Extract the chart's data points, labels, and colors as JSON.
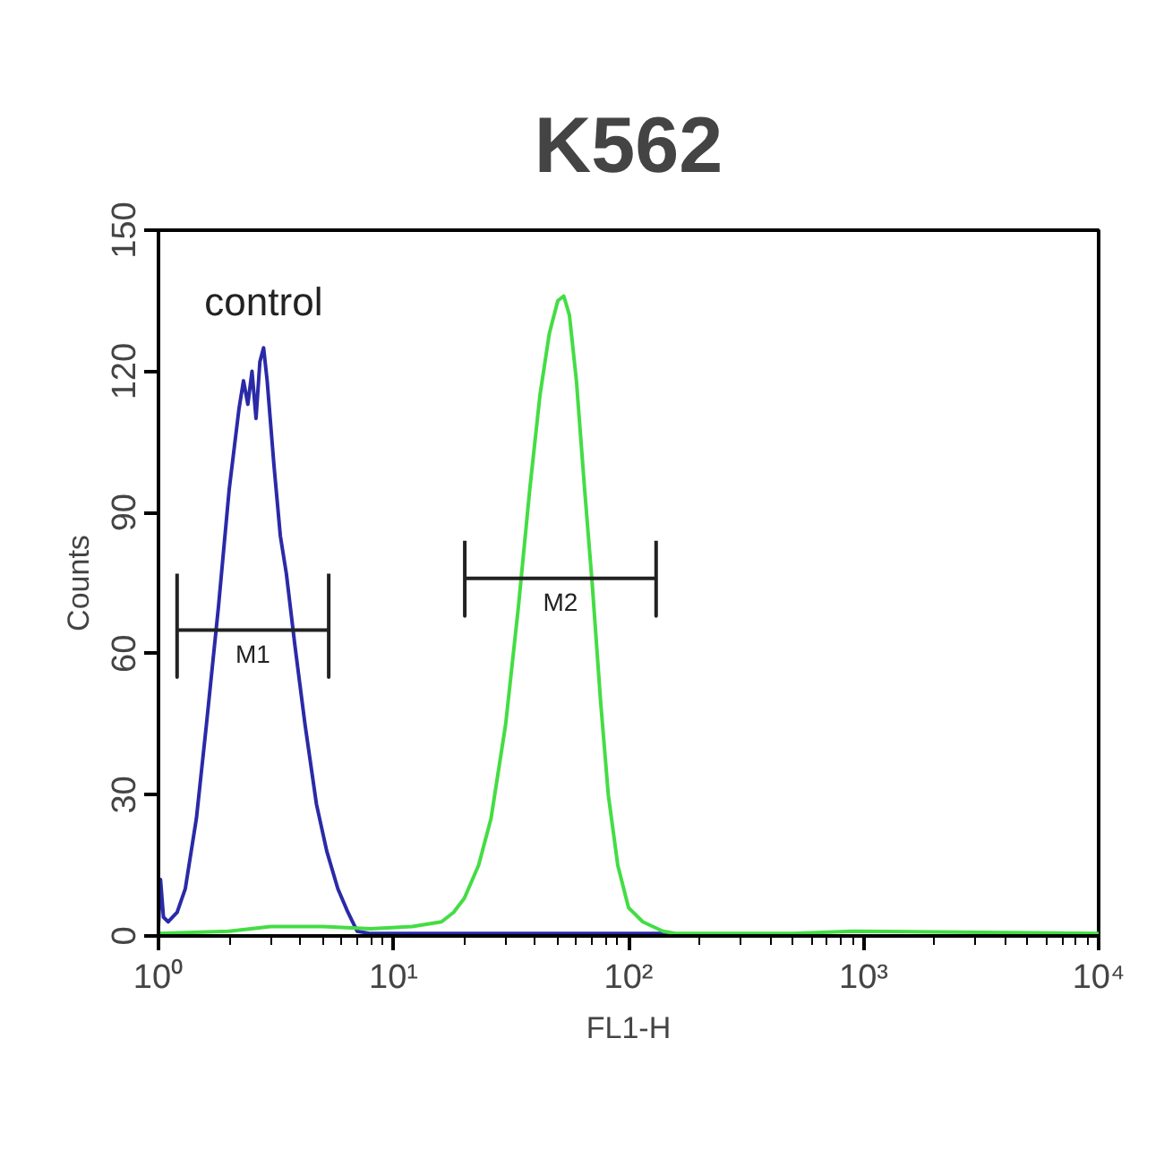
{
  "chart_data": {
    "type": "line",
    "title": "K562",
    "xlabel": "FL1-H",
    "ylabel": "Counts",
    "log": "x",
    "grid": false,
    "line_style": "solid",
    "marker": "none",
    "xlim": [
      1,
      10000
    ],
    "xticks": [
      {
        "value": 1,
        "label": "10⁰"
      },
      {
        "value": 10,
        "label": "10¹"
      },
      {
        "value": 100,
        "label": "10²"
      },
      {
        "value": 1000,
        "label": "10³"
      },
      {
        "value": 10000,
        "label": "10⁴"
      }
    ],
    "ylim": [
      0,
      150
    ],
    "yticks": [
      0,
      30,
      60,
      90,
      120,
      150
    ],
    "series": [
      {
        "name": "control",
        "color": "#2a2aa8",
        "x": [
          1.0,
          1.02,
          1.05,
          1.1,
          1.2,
          1.3,
          1.45,
          1.6,
          1.8,
          2.0,
          2.2,
          2.3,
          2.4,
          2.5,
          2.6,
          2.7,
          2.8,
          2.9,
          3.1,
          3.3,
          3.5,
          3.8,
          4.2,
          4.7,
          5.2,
          5.8,
          6.4,
          7.0,
          8,
          20,
          100,
          150
        ],
        "values": [
          2,
          12,
          4,
          3,
          5,
          10,
          25,
          45,
          70,
          95,
          112,
          118,
          113,
          120,
          110,
          122,
          125,
          118,
          100,
          85,
          77,
          62,
          45,
          28,
          18,
          10,
          5,
          1,
          0.5,
          0.5,
          0.5,
          0.5
        ]
      },
      {
        "color": "#44dd44",
        "x": [
          1,
          2,
          3,
          5,
          8,
          12,
          16,
          18,
          20,
          23,
          26,
          30,
          34,
          38,
          42,
          46,
          50,
          53,
          56,
          60,
          65,
          70,
          76,
          82,
          90,
          100,
          115,
          140,
          160,
          500,
          900,
          10000
        ],
        "values": [
          0.5,
          1,
          2,
          2,
          1.5,
          2,
          3,
          5,
          8,
          15,
          25,
          45,
          70,
          95,
          115,
          128,
          135,
          136,
          132,
          118,
          95,
          75,
          50,
          30,
          15,
          6,
          3,
          1,
          0.5,
          0.5,
          1,
          0.5
        ]
      },
      {
        "name": "M1",
        "color": "#222222",
        "x": [
          1.2,
          1.2,
          1.2,
          5.3,
          5.3,
          5.3
        ],
        "values": [
          77,
          55,
          65,
          65,
          55,
          77
        ]
      },
      {
        "name": "M2",
        "color": "#222222",
        "x": [
          20.1,
          20.1,
          20.1,
          131,
          131,
          131
        ],
        "values": [
          84,
          68,
          76,
          76,
          68,
          84
        ]
      }
    ]
  }
}
